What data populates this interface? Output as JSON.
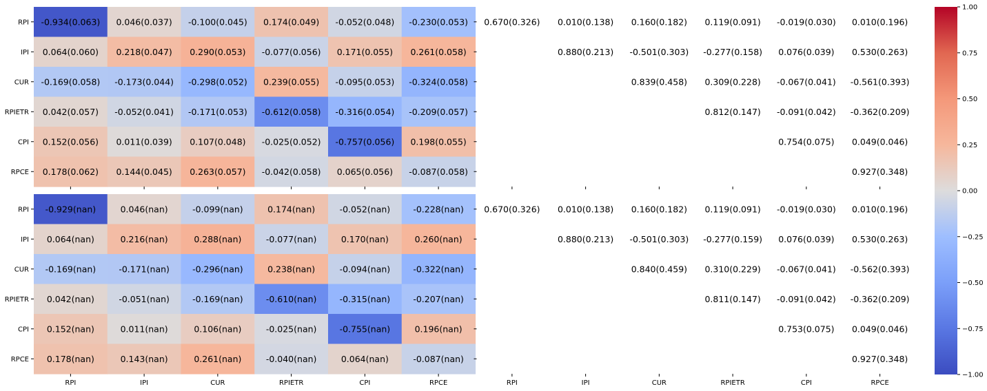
{
  "chart_data": [
    {
      "type": "heatmap",
      "title": "",
      "xlabel": "",
      "ylabel": "",
      "x_tick_labels": [
        "",
        "",
        "",
        "",
        "",
        "",
        "",
        "",
        "",
        "",
        "",
        ""
      ],
      "y_tick_labels": [
        "RPI",
        "IPI",
        "CUR",
        "RPIETR",
        "CPI",
        "RPCE"
      ],
      "left_values": [
        [
          -0.934,
          0.046,
          -0.1,
          0.174,
          -0.052,
          -0.23
        ],
        [
          0.064,
          0.218,
          0.29,
          -0.077,
          0.171,
          0.261
        ],
        [
          -0.169,
          -0.173,
          -0.298,
          0.239,
          -0.095,
          -0.324
        ],
        [
          0.042,
          -0.052,
          -0.171,
          -0.612,
          -0.316,
          -0.209
        ],
        [
          0.152,
          0.011,
          0.107,
          -0.025,
          -0.757,
          0.198
        ],
        [
          0.178,
          0.144,
          0.263,
          -0.042,
          0.065,
          -0.087
        ]
      ],
      "left_labels": [
        [
          "-0.934(0.063)",
          "0.046(0.037)",
          "-0.100(0.045)",
          "0.174(0.049)",
          "-0.052(0.048)",
          "-0.230(0.053)"
        ],
        [
          "0.064(0.060)",
          "0.218(0.047)",
          "0.290(0.053)",
          "-0.077(0.056)",
          "0.171(0.055)",
          "0.261(0.058)"
        ],
        [
          "-0.169(0.058)",
          "-0.173(0.044)",
          "-0.298(0.052)",
          "0.239(0.055)",
          "-0.095(0.053)",
          "-0.324(0.058)"
        ],
        [
          "0.042(0.057)",
          "-0.052(0.041)",
          "-0.171(0.053)",
          "-0.612(0.058)",
          "-0.316(0.054)",
          "-0.209(0.057)"
        ],
        [
          "0.152(0.056)",
          "0.011(0.039)",
          "0.107(0.048)",
          "-0.025(0.052)",
          "-0.757(0.056)",
          "0.198(0.055)"
        ],
        [
          "0.178(0.062)",
          "0.144(0.045)",
          "0.263(0.057)",
          "-0.042(0.058)",
          "0.065(0.056)",
          "-0.087(0.058)"
        ]
      ],
      "right_labels": [
        [
          "0.670(0.326)",
          "0.010(0.138)",
          "0.160(0.182)",
          "0.119(0.091)",
          "-0.019(0.030)",
          "0.010(0.196)"
        ],
        [
          "",
          "0.880(0.213)",
          "-0.501(0.303)",
          "-0.277(0.158)",
          "0.076(0.039)",
          "0.530(0.263)"
        ],
        [
          "",
          "",
          "0.839(0.458)",
          "0.309(0.228)",
          "-0.067(0.041)",
          "-0.561(0.393)"
        ],
        [
          "",
          "",
          "",
          "0.812(0.147)",
          "-0.091(0.042)",
          "-0.362(0.209)"
        ],
        [
          "",
          "",
          "",
          "",
          "0.754(0.075)",
          "0.049(0.046)"
        ],
        [
          "",
          "",
          "",
          "",
          "",
          "0.927(0.348)"
        ]
      ]
    },
    {
      "type": "heatmap",
      "title": "",
      "xlabel": "",
      "ylabel": "",
      "x_tick_labels": [
        "RPI",
        "IPI",
        "CUR",
        "RPIETR",
        "CPI",
        "RPCE",
        "RPI",
        "IPI",
        "CUR",
        "RPIETR",
        "CPI",
        "RPCE"
      ],
      "y_tick_labels": [
        "RPI",
        "IPI",
        "CUR",
        "RPIETR",
        "CPI",
        "RPCE"
      ],
      "left_values": [
        [
          -0.929,
          0.046,
          -0.099,
          0.174,
          -0.052,
          -0.228
        ],
        [
          0.064,
          0.216,
          0.288,
          -0.077,
          0.17,
          0.26
        ],
        [
          -0.169,
          -0.171,
          -0.296,
          0.238,
          -0.094,
          -0.322
        ],
        [
          0.042,
          -0.051,
          -0.169,
          -0.61,
          -0.315,
          -0.207
        ],
        [
          0.152,
          0.011,
          0.106,
          -0.025,
          -0.755,
          0.196
        ],
        [
          0.178,
          0.143,
          0.261,
          -0.04,
          0.064,
          -0.087
        ]
      ],
      "left_labels": [
        [
          "-0.929(nan)",
          "0.046(nan)",
          "-0.099(nan)",
          "0.174(nan)",
          "-0.052(nan)",
          "-0.228(nan)"
        ],
        [
          "0.064(nan)",
          "0.216(nan)",
          "0.288(nan)",
          "-0.077(nan)",
          "0.170(nan)",
          "0.260(nan)"
        ],
        [
          "-0.169(nan)",
          "-0.171(nan)",
          "-0.296(nan)",
          "0.238(nan)",
          "-0.094(nan)",
          "-0.322(nan)"
        ],
        [
          "0.042(nan)",
          "-0.051(nan)",
          "-0.169(nan)",
          "-0.610(nan)",
          "-0.315(nan)",
          "-0.207(nan)"
        ],
        [
          "0.152(nan)",
          "0.011(nan)",
          "0.106(nan)",
          "-0.025(nan)",
          "-0.755(nan)",
          "0.196(nan)"
        ],
        [
          "0.178(nan)",
          "0.143(nan)",
          "0.261(nan)",
          "-0.040(nan)",
          "0.064(nan)",
          "-0.087(nan)"
        ]
      ],
      "right_labels": [
        [
          "0.670(0.326)",
          "0.010(0.138)",
          "0.160(0.182)",
          "0.119(0.091)",
          "-0.019(0.030)",
          "0.010(0.196)"
        ],
        [
          "",
          "0.880(0.213)",
          "-0.501(0.303)",
          "-0.277(0.159)",
          "0.076(0.039)",
          "0.530(0.263)"
        ],
        [
          "",
          "",
          "0.840(0.459)",
          "0.310(0.229)",
          "-0.067(0.041)",
          "-0.562(0.393)"
        ],
        [
          "",
          "",
          "",
          "0.811(0.147)",
          "-0.091(0.042)",
          "-0.362(0.209)"
        ],
        [
          "",
          "",
          "",
          "",
          "0.753(0.075)",
          "0.049(0.046)"
        ],
        [
          "",
          "",
          "",
          "",
          "",
          "0.927(0.348)"
        ]
      ]
    }
  ],
  "colorbar": {
    "min": -1.0,
    "max": 1.0,
    "colormap": "coolwarm",
    "ticks": [
      1.0,
      0.75,
      0.5,
      0.25,
      0.0,
      -0.25,
      -0.5,
      -0.75,
      -1.0
    ],
    "tick_labels": [
      "1.00",
      "0.75",
      "0.50",
      "0.25",
      "0.00",
      "−0.25",
      "−0.50",
      "−0.75",
      "−1.00"
    ]
  }
}
